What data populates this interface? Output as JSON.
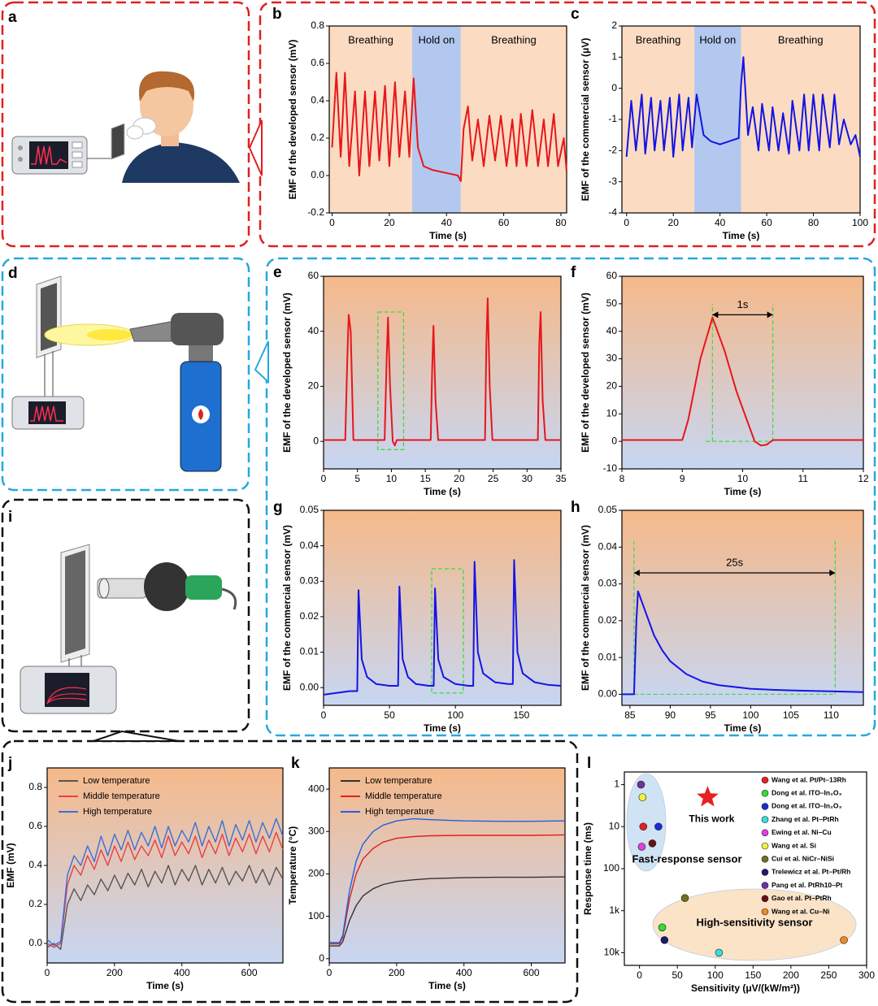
{
  "illustrations": [
    {
      "label": "a"
    },
    {
      "label": "d"
    },
    {
      "label": "i"
    }
  ],
  "chart_data": [
    {
      "type": "line",
      "label": "b",
      "xlabel": "Time (s)",
      "ylabel": "EMF of the developed sensor (mV)",
      "xlim": [
        -1,
        82
      ],
      "xticks": [
        0,
        20,
        40,
        60,
        80
      ],
      "ylim": [
        -0.2,
        0.8
      ],
      "yticks": [
        -0.2,
        {
          "value": 0,
          "label": "0.0"
        },
        0.2,
        0.4,
        0.6,
        0.8
      ],
      "regions": [
        {
          "label": "Breathing",
          "x": [
            -1,
            28
          ],
          "color": "#fbdcc2"
        },
        {
          "label": "Hold on",
          "x": [
            28,
            45
          ],
          "color": "#b3c8ef"
        },
        {
          "label": "Breathing",
          "x": [
            45,
            82
          ],
          "color": "#fbdcc2"
        }
      ],
      "x": [
        0,
        1.5,
        3,
        4.5,
        6,
        8,
        9.5,
        11.5,
        13,
        15,
        16.5,
        18.5,
        20,
        22,
        23.5,
        25.5,
        27,
        28.5,
        30,
        32,
        35,
        38,
        41,
        44,
        45,
        46,
        47.5,
        49,
        51,
        53,
        55,
        57,
        59,
        61,
        63,
        64.5,
        66,
        68,
        70,
        72,
        74,
        75.5,
        77.5,
        79,
        81,
        82
      ],
      "series": [
        {
          "color": "#e8161b",
          "values": [
            0.15,
            0.55,
            0.1,
            0.55,
            0.05,
            0.45,
            0.0,
            0.45,
            0.05,
            0.45,
            0.08,
            0.48,
            0.05,
            0.5,
            0.1,
            0.45,
            0.1,
            0.52,
            0.15,
            0.05,
            0.03,
            0.02,
            0.01,
            0.0,
            -0.03,
            0.25,
            0.37,
            0.08,
            0.3,
            0.05,
            0.32,
            0.08,
            0.32,
            0.05,
            0.3,
            0.05,
            0.33,
            0.05,
            0.35,
            0.05,
            0.3,
            0.05,
            0.33,
            0.05,
            0.2,
            0.02
          ]
        }
      ]
    },
    {
      "type": "line",
      "label": "c",
      "xlabel": "Time (s)",
      "ylabel": "EMF of the commercial sensor (μV)",
      "xlim": [
        -2,
        100
      ],
      "xticks": [
        0,
        20,
        40,
        60,
        80,
        100
      ],
      "ylim": [
        -4,
        2
      ],
      "yticks": [
        -4,
        -3,
        -2,
        -1,
        0,
        1,
        2
      ],
      "regions": [
        {
          "label": "Breathing",
          "x": [
            -2,
            29
          ],
          "color": "#fbdcc2"
        },
        {
          "label": "Hold on",
          "x": [
            29,
            49
          ],
          "color": "#b3c8ef"
        },
        {
          "label": "Breathing",
          "x": [
            49,
            100
          ],
          "color": "#fbdcc2"
        }
      ],
      "x": [
        0,
        2,
        4,
        6.5,
        8,
        10.5,
        12,
        14.5,
        16,
        18.5,
        20,
        22.5,
        24,
        26.5,
        28,
        30,
        33,
        36,
        40,
        44,
        48,
        49,
        50,
        52,
        54,
        56.5,
        58,
        61,
        62.5,
        65,
        67,
        69.5,
        71,
        74,
        76,
        78,
        80,
        82.5,
        84,
        87,
        89,
        91,
        93,
        96,
        98,
        100
      ],
      "series": [
        {
          "color": "#1414e6",
          "values": [
            -2.2,
            -0.4,
            -2,
            -0.2,
            -2.1,
            -0.3,
            -2,
            -0.4,
            -2,
            -0.3,
            -2.2,
            -0.2,
            -2,
            -0.3,
            -1.9,
            -0.2,
            -1.5,
            -1.7,
            -1.8,
            -1.7,
            -1.6,
            0.1,
            1,
            -1.5,
            -0.6,
            -2,
            -0.5,
            -2,
            -0.6,
            -2,
            -0.8,
            -2.1,
            -0.4,
            -2,
            -0.2,
            -2,
            -0.2,
            -2,
            -0.2,
            -1.9,
            -0.2,
            -1.8,
            -1,
            -1.8,
            -1.5,
            -2.2
          ]
        }
      ]
    },
    {
      "type": "line",
      "label": "e",
      "xlabel": "Time (s)",
      "ylabel": "EMF of the developed sensor (mV)",
      "background": [
        "#f6b98a",
        "#c7d6f2"
      ],
      "xlim": [
        0,
        35
      ],
      "xticks": [
        0,
        5,
        10,
        15,
        20,
        25,
        30,
        35
      ],
      "ylim": [
        -10,
        60
      ],
      "yticks": [
        0,
        20,
        40,
        60
      ],
      "highlight": {
        "x": [
          8,
          11.8
        ],
        "y": [
          -3,
          47
        ],
        "color": "#3ddc3d"
      },
      "x": [
        0,
        3.2,
        3.5,
        3.7,
        4,
        4.4,
        9,
        9.3,
        9.5,
        9.8,
        10.2,
        10.5,
        10.8,
        15.8,
        16,
        16.2,
        16.5,
        16.9,
        23.8,
        24,
        24.2,
        24.5,
        24.9,
        31.6,
        31.8,
        32,
        32.3,
        32.7,
        35
      ],
      "series": [
        {
          "color": "#e8161b",
          "values": [
            0.5,
            0.5,
            30,
            46,
            40,
            0.5,
            0.5,
            30,
            45,
            20,
            0,
            -1.5,
            0.5,
            0.5,
            25,
            42,
            15,
            0.5,
            0.5,
            35,
            52,
            20,
            0.5,
            0.5,
            35,
            47,
            15,
            0.5,
            0.5
          ]
        }
      ]
    },
    {
      "type": "line",
      "label": "f",
      "xlabel": "Time (s)",
      "ylabel": "EMF of the developed sensor (mV)",
      "background": [
        "#f6b98a",
        "#c7d6f2"
      ],
      "xlim": [
        8,
        12
      ],
      "xticks": [
        8,
        9,
        10,
        11,
        12
      ],
      "ylim": [
        -10,
        60
      ],
      "yticks": [
        -10,
        0,
        10,
        20,
        30,
        40,
        50,
        60
      ],
      "span": {
        "label": "1s",
        "x": [
          9.5,
          10.5
        ],
        "y": 46,
        "y_extent": [
          0,
          50
        ],
        "color": "#3ddc3d"
      },
      "x": [
        8,
        9,
        9.1,
        9.3,
        9.5,
        9.7,
        9.9,
        10.1,
        10.2,
        10.3,
        10.4,
        10.5,
        12
      ],
      "series": [
        {
          "color": "#e8161b",
          "values": [
            0.5,
            0.5,
            8,
            30,
            45,
            33,
            18,
            6,
            0,
            -1.5,
            -1.2,
            0.5,
            0.5
          ]
        }
      ]
    },
    {
      "type": "line",
      "label": "g",
      "xlabel": "Time (s)",
      "ylabel": "EMF of the commercial sensor (mV)",
      "background": [
        "#f6b98a",
        "#c7d6f2"
      ],
      "xlim": [
        0,
        180
      ],
      "xticks": [
        0,
        50,
        100,
        150
      ],
      "ylim": [
        -0.005,
        0.05
      ],
      "yticks": [
        {
          "value": 0,
          "label": "0.00"
        },
        0.01,
        0.02,
        0.03,
        0.04,
        0.05
      ],
      "highlight": {
        "x": [
          82,
          106
        ],
        "y": [
          -0.0015,
          0.0335
        ],
        "color": "#3ddc3d"
      },
      "x": [
        0,
        20,
        25.5,
        26.5,
        29,
        33,
        40,
        50,
        56.5,
        57.5,
        60,
        64,
        70,
        80,
        83.5,
        84.5,
        87,
        91,
        100,
        110,
        113.5,
        114.5,
        117,
        121,
        130,
        140,
        143.5,
        144.5,
        147,
        151,
        160,
        170,
        180
      ],
      "series": [
        {
          "color": "#1414e6",
          "values": [
            -0.002,
            -0.001,
            -0.001,
            0.0275,
            0.008,
            0.003,
            0.001,
            0.0005,
            0.0005,
            0.0285,
            0.008,
            0.003,
            0.001,
            0.0005,
            0.0005,
            0.028,
            0.008,
            0.003,
            0.001,
            0.0005,
            0.0005,
            0.0355,
            0.01,
            0.004,
            0.0015,
            0.001,
            0.001,
            0.036,
            0.01,
            0.004,
            0.0015,
            0.0008,
            0.0005
          ]
        }
      ]
    },
    {
      "type": "line",
      "label": "h",
      "xlabel": "Time (s)",
      "ylabel": "EMF of the commercial sensor (mV)",
      "background": [
        "#f6b98a",
        "#c7d6f2"
      ],
      "xlim": [
        84,
        114
      ],
      "xticks": [
        85,
        90,
        95,
        100,
        105,
        110
      ],
      "ylim": [
        -0.003,
        0.05
      ],
      "yticks": [
        {
          "value": 0,
          "label": "0.00"
        },
        0.01,
        0.02,
        0.03,
        0.04,
        0.05
      ],
      "span": {
        "label": "25s",
        "x": [
          85.5,
          110.5
        ],
        "y": 0.033,
        "y_extent": [
          0,
          0.042
        ],
        "color": "#3ddc3d"
      },
      "x": [
        84,
        85.5,
        85.8,
        86,
        87,
        88,
        89,
        90,
        92,
        94,
        96,
        98,
        100,
        103,
        106,
        110,
        114
      ],
      "series": [
        {
          "color": "#1414e6",
          "values": [
            0,
            0,
            0.02,
            0.028,
            0.022,
            0.016,
            0.012,
            0.009,
            0.0055,
            0.0035,
            0.0025,
            0.002,
            0.0015,
            0.0012,
            0.001,
            0.0008,
            0.0006
          ]
        }
      ]
    },
    {
      "type": "line",
      "label": "j",
      "xlabel": "Time (s)",
      "ylabel": "EMF (mV)",
      "background": [
        "#f6b98a",
        "#c7d6f2"
      ],
      "xlim": [
        0,
        700
      ],
      "xticks": [
        0,
        200,
        400,
        600
      ],
      "ylim": [
        -0.1,
        0.9
      ],
      "yticks": [
        {
          "value": 0,
          "label": "0.0"
        },
        0.2,
        0.4,
        0.6,
        0.8
      ],
      "x": [
        0,
        20,
        40,
        60,
        80,
        100,
        120,
        140,
        160,
        180,
        200,
        220,
        240,
        260,
        280,
        300,
        320,
        340,
        360,
        380,
        400,
        420,
        440,
        460,
        480,
        500,
        520,
        540,
        560,
        580,
        600,
        620,
        640,
        660,
        680,
        700
      ],
      "series": [
        {
          "name": "Low temperature",
          "color": "#555555",
          "values": [
            -0.02,
            0.0,
            -0.03,
            0.2,
            0.28,
            0.22,
            0.3,
            0.25,
            0.33,
            0.27,
            0.35,
            0.28,
            0.36,
            0.3,
            0.38,
            0.29,
            0.37,
            0.31,
            0.4,
            0.3,
            0.38,
            0.32,
            0.4,
            0.3,
            0.38,
            0.31,
            0.39,
            0.3,
            0.37,
            0.32,
            0.4,
            0.31,
            0.38,
            0.3,
            0.39,
            0.33
          ]
        },
        {
          "name": "Middle temperature",
          "color": "#e84040",
          "values": [
            0.0,
            -0.02,
            0.0,
            0.3,
            0.4,
            0.35,
            0.45,
            0.38,
            0.48,
            0.4,
            0.5,
            0.42,
            0.52,
            0.43,
            0.5,
            0.45,
            0.53,
            0.44,
            0.55,
            0.45,
            0.52,
            0.46,
            0.55,
            0.44,
            0.53,
            0.46,
            0.56,
            0.45,
            0.54,
            0.47,
            0.56,
            0.46,
            0.55,
            0.47,
            0.57,
            0.48
          ]
        },
        {
          "name": "High temperature",
          "color": "#3a6fd8",
          "values": [
            0.02,
            -0.01,
            0.01,
            0.35,
            0.45,
            0.4,
            0.5,
            0.42,
            0.55,
            0.45,
            0.56,
            0.48,
            0.58,
            0.48,
            0.57,
            0.5,
            0.6,
            0.49,
            0.6,
            0.5,
            0.58,
            0.52,
            0.62,
            0.5,
            0.6,
            0.52,
            0.63,
            0.5,
            0.61,
            0.53,
            0.63,
            0.52,
            0.62,
            0.54,
            0.64,
            0.55
          ]
        }
      ]
    },
    {
      "type": "line",
      "label": "k",
      "xlabel": "Time (s)",
      "ylabel": "Temperature (°C)",
      "background": [
        "#f6b98a",
        "#c7d6f2"
      ],
      "xlim": [
        0,
        700
      ],
      "xticks": [
        0,
        200,
        400,
        600
      ],
      "ylim": [
        -10,
        450
      ],
      "yticks": [
        0,
        100,
        200,
        300,
        400
      ],
      "x": [
        0,
        30,
        40,
        60,
        80,
        100,
        130,
        160,
        200,
        250,
        300,
        400,
        500,
        600,
        700
      ],
      "series": [
        {
          "name": "Low temperature",
          "color": "#333333",
          "values": [
            30,
            30,
            40,
            90,
            125,
            148,
            165,
            175,
            182,
            186,
            189,
            191,
            192,
            192,
            193
          ]
        },
        {
          "name": "Middle temperature",
          "color": "#e02020",
          "values": [
            35,
            35,
            50,
            140,
            200,
            235,
            260,
            275,
            284,
            288,
            290,
            291,
            291,
            291,
            292
          ]
        },
        {
          "name": "High temperature",
          "color": "#2060e0",
          "values": [
            38,
            38,
            55,
            160,
            230,
            270,
            300,
            315,
            325,
            330,
            328,
            325,
            324,
            324,
            325
          ]
        }
      ]
    },
    {
      "type": "scatter",
      "label": "l",
      "xlabel": "Sensitivity (μV/(kW/m²))",
      "ylabel": "Response time (ms)",
      "xlim": [
        -20,
        300
      ],
      "xticks": [
        0,
        50,
        100,
        150,
        200,
        250,
        300
      ],
      "ylim": [
        0.5,
        20000
      ],
      "log_y": true,
      "y_inverted": true,
      "yticks": [
        1,
        10,
        100,
        {
          "value": 1000,
          "label": "1k"
        },
        {
          "value": 10000,
          "label": "10k"
        }
      ],
      "regions": [
        {
          "label": "Fast-response sensor",
          "color": "#cfe3f5"
        },
        {
          "label": "High-sensitivity sensor",
          "color": "#fbe3c8"
        }
      ],
      "this_work": {
        "name": "This work",
        "x": 90,
        "value": 2,
        "color": "#e82020"
      },
      "series": [
        {
          "name": "Wang et al. Pt/Pt–13Rh",
          "color": "#e82020",
          "x": [
            5
          ],
          "values": [
            10
          ]
        },
        {
          "name": "Dong et al. ITO–In₂O₃",
          "color": "#33dd33",
          "x": [
            30
          ],
          "values": [
            2500
          ]
        },
        {
          "name": "Dong et al. ITO–In₂O₃",
          "color": "#1a2bd8",
          "x": [
            25
          ],
          "values": [
            10
          ]
        },
        {
          "name": "Zhang et al. Pt–PtRh",
          "color": "#33e0e0",
          "x": [
            105
          ],
          "values": [
            10000
          ]
        },
        {
          "name": "Ewing et al. Ni–Cu",
          "color": "#e040e0",
          "x": [
            3
          ],
          "values": [
            30
          ]
        },
        {
          "name": "Wang et al. Si",
          "color": "#f0f040",
          "x": [
            4
          ],
          "values": [
            2
          ]
        },
        {
          "name": "Cui et al. NiCr–NiSi",
          "color": "#707020",
          "x": [
            60
          ],
          "values": [
            500
          ]
        },
        {
          "name": "Trelewicz et al. Pt–Pt/Rh",
          "color": "#1a1a70",
          "x": [
            33
          ],
          "values": [
            5000
          ]
        },
        {
          "name": "Pang et al. PtRh10–Pt",
          "color": "#7030a0",
          "x": [
            2
          ],
          "values": [
            1
          ]
        },
        {
          "name": "Gao et al. Pt–PtRh",
          "color": "#6a1010",
          "x": [
            17
          ],
          "values": [
            25
          ]
        },
        {
          "name": "Wang et al. Cu–Ni",
          "color": "#f08a20",
          "x": [
            270
          ],
          "values": [
            5000
          ]
        }
      ]
    }
  ]
}
